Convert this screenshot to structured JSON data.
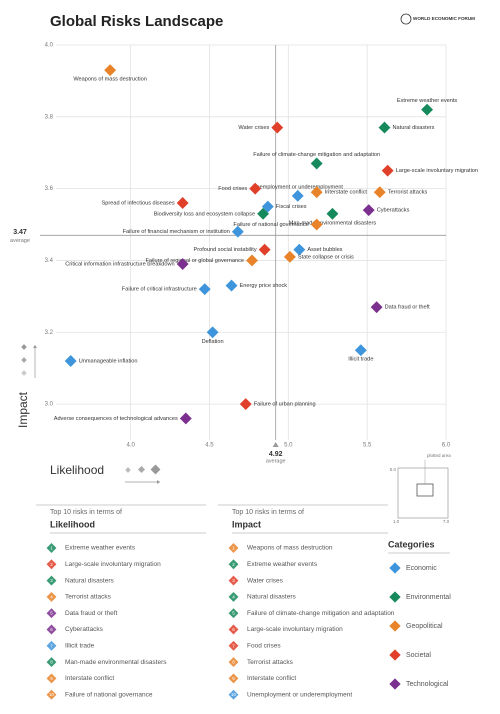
{
  "header": {
    "title": "Global Risks Landscape",
    "logo": "WORLD ECONOMIC FORUM"
  },
  "chart_data": {
    "type": "scatter",
    "x_label": "Likelihood",
    "y_label": "Impact",
    "xlim": [
      3.4,
      6.0
    ],
    "ylim": [
      2.9,
      4.0
    ],
    "xticks": [
      {
        "value": 4.0,
        "label": "4.0"
      },
      4.5,
      {
        "value": 5.0,
        "label": "5.0"
      },
      5.5,
      {
        "value": 6.0,
        "label": "6.0"
      }
    ],
    "yticks": [
      {
        "value": 3.0,
        "label": "3.0"
      },
      3.2,
      3.4,
      3.6,
      3.8,
      {
        "value": 4.0,
        "label": "4.0"
      }
    ],
    "x_average": 4.92,
    "y_average": 3.47,
    "average_label": "average",
    "grid": true,
    "legend_title": "Categories",
    "series": [
      {
        "name": "Economic",
        "color": "#3f95dc",
        "labels": [
          "Unemployment or underemployment",
          "Fiscal crises",
          "Failure of financial mechanism or institution",
          "Asset bubbles",
          "Failure of critical infrastructure",
          "Energy price shock",
          "Deflation",
          "Illicit trade",
          "Unmanageable inflation"
        ],
        "x": [
          5.06,
          4.87,
          4.68,
          5.07,
          4.47,
          4.64,
          4.52,
          5.46,
          3.62
        ],
        "values": [
          3.58,
          3.55,
          3.48,
          3.43,
          3.32,
          3.33,
          3.2,
          3.15,
          3.12
        ]
      },
      {
        "name": "Environmental",
        "color": "#168a5c",
        "labels": [
          "Extreme weather events",
          "Natural disasters",
          "Failure of climate-change mitigation and adaptation",
          "Biodiversity loss and ecosystem collapse",
          "Man-made environmental disasters"
        ],
        "x": [
          5.88,
          5.61,
          5.18,
          4.84,
          5.28
        ],
        "values": [
          3.82,
          3.77,
          3.67,
          3.53,
          3.53
        ]
      },
      {
        "name": "Geopolitical",
        "color": "#e8832a",
        "labels": [
          "Weapons of mass destruction",
          "Terrorist attacks",
          "Interstate conflict",
          "Failure of national governance",
          "Failure of regional or global governance",
          "State collapse or crisis"
        ],
        "x": [
          3.87,
          5.58,
          5.18,
          5.18,
          4.77,
          5.01
        ],
        "values": [
          3.93,
          3.59,
          3.59,
          3.5,
          3.4,
          3.41
        ]
      },
      {
        "name": "Societal",
        "color": "#e0402a",
        "labels": [
          "Water crises",
          "Large-scale involuntary migration",
          "Food crises",
          "Spread of infectious diseases",
          "Profound social instability",
          "Failure of urban planning"
        ],
        "x": [
          4.93,
          5.63,
          4.79,
          4.33,
          4.85,
          4.73
        ],
        "values": [
          3.77,
          3.65,
          3.6,
          3.56,
          3.43,
          3.0
        ]
      },
      {
        "name": "Technological",
        "color": "#7b2f8e",
        "labels": [
          "Cyberattacks",
          "Critical information infrastructure breakdown",
          "Data fraud or theft",
          "Adverse consequences of technological advances"
        ],
        "x": [
          5.51,
          4.33,
          5.56,
          4.35
        ],
        "values": [
          3.54,
          3.39,
          3.27,
          2.96
        ]
      }
    ]
  },
  "inset": {
    "label": "plotted area",
    "ticks": [
      "5.0",
      "1.0",
      "7.0"
    ]
  },
  "lists": [
    {
      "heading": "Top 10 risks in terms of",
      "title": "Likelihood",
      "items": [
        {
          "rank": "1",
          "name": "Extreme weather events",
          "color": "#168a5c"
        },
        {
          "rank": "2",
          "name": "Large-scale involuntary migration",
          "color": "#e0402a"
        },
        {
          "rank": "3",
          "name": "Natural disasters",
          "color": "#168a5c"
        },
        {
          "rank": "4",
          "name": "Terrorist attacks",
          "color": "#e8832a"
        },
        {
          "rank": "5",
          "name": "Data fraud or theft",
          "color": "#7b2f8e"
        },
        {
          "rank": "6",
          "name": "Cyberattacks",
          "color": "#7b2f8e"
        },
        {
          "rank": "7",
          "name": "Illicit trade",
          "color": "#3f95dc"
        },
        {
          "rank": "8",
          "name": "Man-made environmental disasters",
          "color": "#168a5c"
        },
        {
          "rank": "9",
          "name": "Interstate conflict",
          "color": "#e8832a"
        },
        {
          "rank": "10",
          "name": "Failure of national governance",
          "color": "#e8832a"
        }
      ]
    },
    {
      "heading": "Top 10 risks in terms of",
      "title": "Impact",
      "items": [
        {
          "rank": "1",
          "name": "Weapons of mass destruction",
          "color": "#e8832a"
        },
        {
          "rank": "2",
          "name": "Extreme weather events",
          "color": "#168a5c"
        },
        {
          "rank": "3",
          "name": "Water crises",
          "color": "#e0402a"
        },
        {
          "rank": "4",
          "name": "Natural disasters",
          "color": "#168a5c"
        },
        {
          "rank": "5",
          "name": "Failure of climate-change mitigation and adaptation",
          "color": "#168a5c"
        },
        {
          "rank": "6",
          "name": "Large-scale involuntary migration",
          "color": "#e0402a"
        },
        {
          "rank": "7",
          "name": "Food crises",
          "color": "#e0402a"
        },
        {
          "rank": "8",
          "name": "Terrorist attacks",
          "color": "#e8832a"
        },
        {
          "rank": "9",
          "name": "Interstate conflict",
          "color": "#e8832a"
        },
        {
          "rank": "10",
          "name": "Unemployment or underemployment",
          "color": "#3f95dc"
        }
      ]
    }
  ]
}
